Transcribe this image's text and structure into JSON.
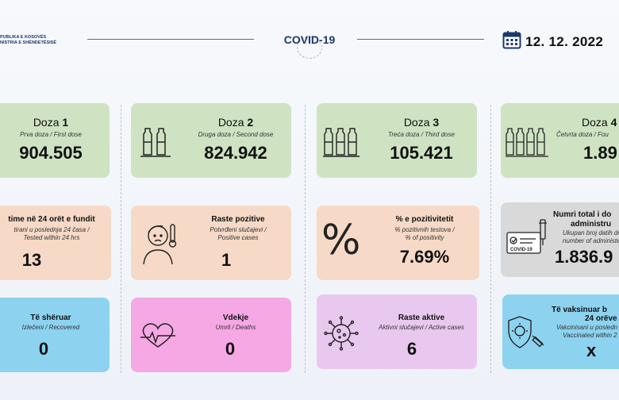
{
  "header": {
    "ministry_line1": "PUBLIKA E KOSOVËS",
    "ministry_line2": "NISTRIA E SHËNDETËSISË",
    "center_title": "COVID-19",
    "date": "12. 12. 2022"
  },
  "cards": {
    "dose1": {
      "title": "Doza",
      "number": "1",
      "subtitle": "Prva doza / First dose",
      "value": "904.505"
    },
    "dose2": {
      "title": "Doza",
      "number": "2",
      "subtitle": "Druga doza / Second dose",
      "value": "824.942"
    },
    "dose3": {
      "title": "Doza",
      "number": "3",
      "subtitle": "Treća doza / Third dose",
      "value": "105.421"
    },
    "dose4": {
      "title": "Doza",
      "number": "4",
      "subtitle": "Četvrta doza / Fou",
      "value": "1.89"
    },
    "tested": {
      "title": "time në 24 orët e fundit",
      "subtitle1": "tirani u poslednja 24 časa /",
      "subtitle2": "Tested within 24 hrs",
      "value": "13"
    },
    "positive": {
      "title": "Raste pozitive",
      "subtitle1": "Potvrđeni slučajevi /",
      "subtitle2": "Positive cases",
      "value": "1"
    },
    "positivity": {
      "title": "% e pozitivitetit",
      "subtitle1": "% pozitivnih testova /",
      "subtitle2": "% of positivity",
      "value": "7.69%"
    },
    "administered": {
      "title1": "Numri total i do",
      "title2": "administru",
      "subtitle1": "Ukupan broj datih do",
      "subtitle2": "number of administe",
      "value": "1.836.9",
      "badge": "COVID-19"
    },
    "recovered": {
      "title": "Të shëruar",
      "subtitle": "Izlečeni / Recovered",
      "value": "0"
    },
    "deaths": {
      "title": "Vdekje",
      "subtitle": "Umrli / Deaths",
      "value": "0"
    },
    "active": {
      "title": "Raste aktive",
      "subtitle": "Aktivni slučajevi / Active cases",
      "value": "6"
    },
    "vaccinated24": {
      "title1": "Të vaksinuar b",
      "title2": "24 orëve",
      "subtitle1": "Vakcinisani u posledn",
      "subtitle2": "Vaccinated within 2",
      "value": "x"
    }
  },
  "colors": {
    "green": "#cfe3c3",
    "peach": "#f6d9c6",
    "blue": "#8dd3f0",
    "pink": "#f5a8e4",
    "lavender": "#e8c8ee",
    "grey": "#d9d9d9",
    "navy": "#1b3a6b"
  }
}
